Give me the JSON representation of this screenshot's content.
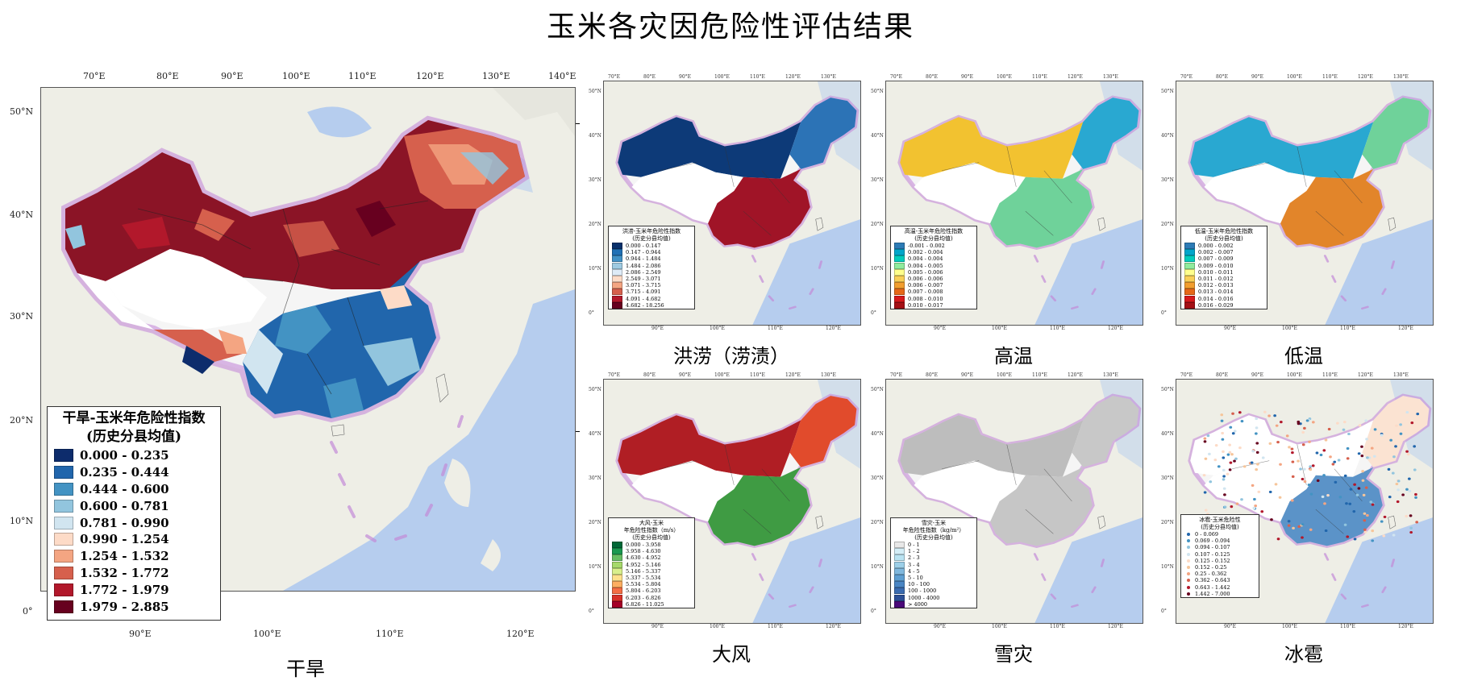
{
  "title": "玉米各灾因危险性评估结果",
  "main_map": {
    "caption": "干旱",
    "lon_ticks_top": [
      "70°E",
      "80°E",
      "90°E",
      "100°E",
      "110°E",
      "120°E",
      "130°E",
      "140°E"
    ],
    "lon_ticks_bottom": [
      "90°E",
      "100°E",
      "110°E",
      "120°E"
    ],
    "lat_ticks": [
      "50°N",
      "40°N",
      "30°N",
      "20°N",
      "10°N",
      "0°"
    ],
    "legend": {
      "title_line1": "干旱-玉米年危险性指数",
      "title_line2": "(历史分县均值)",
      "classes": [
        {
          "label": "0.000 - 0.235",
          "color": "#0d2c6c"
        },
        {
          "label": "0.235 - 0.444",
          "color": "#2166ac"
        },
        {
          "label": "0.444 - 0.600",
          "color": "#4393c3"
        },
        {
          "label": "0.600 - 0.781",
          "color": "#92c5de"
        },
        {
          "label": "0.781 - 0.990",
          "color": "#d1e5f0"
        },
        {
          "label": "0.990 - 1.254",
          "color": "#fddbc7"
        },
        {
          "label": "1.254 - 1.532",
          "color": "#f4a582"
        },
        {
          "label": "1.532 - 1.772",
          "color": "#d6604d"
        },
        {
          "label": "1.772 - 1.979",
          "color": "#b2182b"
        },
        {
          "label": "1.979 - 2.885",
          "color": "#67001f"
        }
      ]
    }
  },
  "small_maps": [
    {
      "caption": "洪涝（涝渍）",
      "legend_title_line1": "洪涝-玉米年危险性指数",
      "legend_title_line2": "(历史分县均值)",
      "classes": [
        {
          "label": "0.000 - 0.147",
          "color": "#08306b"
        },
        {
          "label": "0.147 - 0.944",
          "color": "#2171b5"
        },
        {
          "label": "0.944 - 1.484",
          "color": "#4292c6"
        },
        {
          "label": "1.484 - 2.086",
          "color": "#9ecae1"
        },
        {
          "label": "2.086 - 2.549",
          "color": "#deebf7"
        },
        {
          "label": "2.549 - 3.071",
          "color": "#fddbc7"
        },
        {
          "label": "3.071 - 3.715",
          "color": "#f4a582"
        },
        {
          "label": "3.715 - 4.091",
          "color": "#d6604d"
        },
        {
          "label": "4.091 - 4.682",
          "color": "#b2182b"
        },
        {
          "label": "4.682 - 18.256",
          "color": "#67001f"
        }
      ]
    },
    {
      "caption": "高温",
      "legend_title_line1": "高温-玉米年危险性指数",
      "legend_title_line2": "(历史分县均值)",
      "classes": [
        {
          "label": "-0.001 - 0.002",
          "color": "#2c7bb6"
        },
        {
          "label": "0.002 - 0.004",
          "color": "#00a6ca"
        },
        {
          "label": "0.004 - 0.004",
          "color": "#00ccbc"
        },
        {
          "label": "0.004 - 0.005",
          "color": "#90eb9d"
        },
        {
          "label": "0.005 - 0.006",
          "color": "#ffff8c"
        },
        {
          "label": "0.006 - 0.006",
          "color": "#f9d057"
        },
        {
          "label": "0.006 - 0.007",
          "color": "#f29e2e"
        },
        {
          "label": "0.007 - 0.008",
          "color": "#e76818"
        },
        {
          "label": "0.008 - 0.010",
          "color": "#d7191c"
        },
        {
          "label": "0.010 - 0.017",
          "color": "#a50f15"
        }
      ]
    },
    {
      "caption": "低温",
      "legend_title_line1": "低温-玉米年危险性指数",
      "legend_title_line2": "(历史分县均值)",
      "classes": [
        {
          "label": "0.000 - 0.002",
          "color": "#2c7bb6"
        },
        {
          "label": "0.002 - 0.007",
          "color": "#00a6ca"
        },
        {
          "label": "0.007 - 0.009",
          "color": "#00ccbc"
        },
        {
          "label": "0.009 - 0.010",
          "color": "#90eb9d"
        },
        {
          "label": "0.010 - 0.011",
          "color": "#ffff8c"
        },
        {
          "label": "0.011 - 0.012",
          "color": "#f9d057"
        },
        {
          "label": "0.012 - 0.013",
          "color": "#f29e2e"
        },
        {
          "label": "0.013 - 0.014",
          "color": "#e76818"
        },
        {
          "label": "0.014 - 0.016",
          "color": "#d7191c"
        },
        {
          "label": "0.016 - 0.029",
          "color": "#a50f15"
        }
      ]
    },
    {
      "caption": "大风",
      "legend_title_line1": "大风-玉米",
      "legend_title_line2": "年危险性指数（m/s）",
      "legend_title_line3": "(历史分县均值)",
      "classes": [
        {
          "label": "0.000 - 3.958",
          "color": "#006837"
        },
        {
          "label": "3.958 - 4.630",
          "color": "#1a9850"
        },
        {
          "label": "4.630 - 4.952",
          "color": "#66bd63"
        },
        {
          "label": "4.952 - 5.146",
          "color": "#a6d96a"
        },
        {
          "label": "5.146 - 5.337",
          "color": "#d9ef8b"
        },
        {
          "label": "5.337 - 5.534",
          "color": "#fee08b"
        },
        {
          "label": "5.534 - 5.804",
          "color": "#fdae61"
        },
        {
          "label": "5.804 - 6.203",
          "color": "#f46d43"
        },
        {
          "label": "6.203 - 6.826",
          "color": "#d73027"
        },
        {
          "label": "6.826 - 11.025",
          "color": "#a50026"
        }
      ]
    },
    {
      "caption": "雪灾",
      "legend_title_line1": "雪灾-玉米",
      "legend_title_line2": "年危险性指数（kg/m²）",
      "legend_title_line3": "(历史分县均值)",
      "classes": [
        {
          "label": "0 - 1",
          "color": "#e8e8e8"
        },
        {
          "label": "1 - 2",
          "color": "#d4eef7"
        },
        {
          "label": "2 - 3",
          "color": "#b9e3f2"
        },
        {
          "label": "3 - 4",
          "color": "#9ccfe8"
        },
        {
          "label": "4 - 5",
          "color": "#7fb8de"
        },
        {
          "label": "5 - 10",
          "color": "#5e9fd2"
        },
        {
          "label": "10 - 100",
          "color": "#4a86c4"
        },
        {
          "label": "100 - 1000",
          "color": "#3a6bb0"
        },
        {
          "label": "1000 - 4000",
          "color": "#2b4f96"
        },
        {
          "label": "> 4000",
          "color": "#4b0a7a"
        }
      ]
    },
    {
      "caption": "冰雹",
      "legend_title_line1": "冰雹-玉米危险性",
      "legend_title_line2": "(历史分县均值)",
      "classes": [
        {
          "label": "0 - 0.069",
          "color": "#2166ac"
        },
        {
          "label": "0.069 - 0.094",
          "color": "#4393c3"
        },
        {
          "label": "0.094 - 0.107",
          "color": "#92c5de"
        },
        {
          "label": "0.107 - 0.125",
          "color": "#d1e5f0"
        },
        {
          "label": "0.125 - 0.152",
          "color": "#fddbc7"
        },
        {
          "label": "0.152 - 0.25",
          "color": "#f6c59a"
        },
        {
          "label": "0.25 - 0.362",
          "color": "#f4a582"
        },
        {
          "label": "0.362 - 0.643",
          "color": "#d6604d"
        },
        {
          "label": "0.643 - 1.442",
          "color": "#b2182b"
        },
        {
          "label": "1.442 - 7.000",
          "color": "#67001f"
        }
      ]
    }
  ],
  "small_lon_ticks_top": [
    "70°E",
    "80°E",
    "90°E",
    "100°E",
    "110°E",
    "120°E",
    "130°E"
  ],
  "small_lon_ticks_bottom": [
    "90°E",
    "100°E",
    "110°E",
    "120°E"
  ],
  "small_lat_ticks": [
    "50°N",
    "40°N",
    "30°N",
    "20°N",
    "10°N",
    "0°"
  ]
}
